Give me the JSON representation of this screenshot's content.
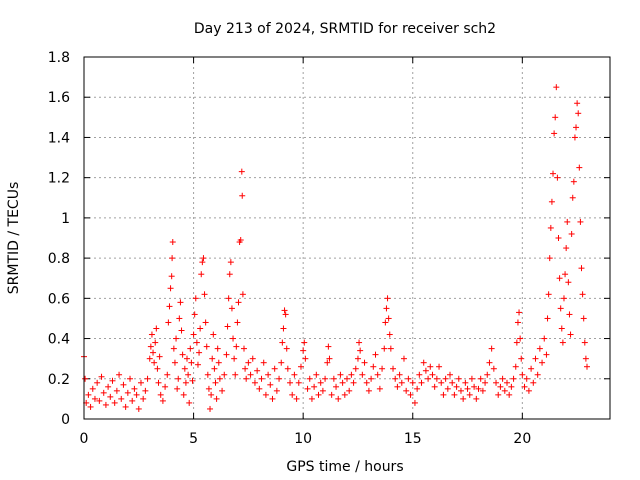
{
  "chart_data": {
    "type": "scatter",
    "title": "Day 213 of 2024, SRMTID for receiver sch2",
    "xlabel": "GPS time / hours",
    "ylabel": "SRMTID / TECUs",
    "xlim": [
      0,
      24
    ],
    "ylim": [
      0,
      1.8
    ],
    "xticks": [
      0,
      5,
      10,
      15,
      20
    ],
    "xtick_labels": [
      "0",
      "5",
      "10",
      "15",
      "20"
    ],
    "yticks": [
      0,
      0.2,
      0.4,
      0.6,
      0.8,
      1.0,
      1.2,
      1.4,
      1.6,
      1.8
    ],
    "ytick_labels": [
      "0",
      "0.2",
      "0.4",
      "0.6",
      "0.8",
      "1",
      "1.2",
      "1.4",
      "1.6",
      "1.8"
    ],
    "grid": true,
    "marker": "+",
    "color": "#ff0000",
    "series": [
      {
        "name": "SRMTID",
        "points": [
          [
            0.0,
            0.31
          ],
          [
            0.05,
            0.2
          ],
          [
            0.1,
            0.08
          ],
          [
            0.2,
            0.12
          ],
          [
            0.3,
            0.06
          ],
          [
            0.4,
            0.15
          ],
          [
            0.5,
            0.1
          ],
          [
            0.6,
            0.18
          ],
          [
            0.7,
            0.09
          ],
          [
            0.8,
            0.21
          ],
          [
            0.9,
            0.13
          ],
          [
            1.0,
            0.07
          ],
          [
            1.1,
            0.16
          ],
          [
            1.2,
            0.11
          ],
          [
            1.3,
            0.19
          ],
          [
            1.4,
            0.08
          ],
          [
            1.5,
            0.14
          ],
          [
            1.6,
            0.22
          ],
          [
            1.7,
            0.1
          ],
          [
            1.8,
            0.17
          ],
          [
            1.9,
            0.06
          ],
          [
            2.0,
            0.13
          ],
          [
            2.1,
            0.2
          ],
          [
            2.2,
            0.09
          ],
          [
            2.3,
            0.15
          ],
          [
            2.4,
            0.12
          ],
          [
            2.5,
            0.05
          ],
          [
            2.6,
            0.18
          ],
          [
            2.7,
            0.1
          ],
          [
            2.8,
            0.14
          ],
          [
            2.9,
            0.2
          ],
          [
            3.0,
            0.3
          ],
          [
            3.05,
            0.36
          ],
          [
            3.1,
            0.42
          ],
          [
            3.15,
            0.33
          ],
          [
            3.2,
            0.28
          ],
          [
            3.25,
            0.38
          ],
          [
            3.3,
            0.45
          ],
          [
            3.35,
            0.25
          ],
          [
            3.4,
            0.18
          ],
          [
            3.45,
            0.31
          ],
          [
            3.5,
            0.12
          ],
          [
            3.6,
            0.09
          ],
          [
            3.7,
            0.16
          ],
          [
            3.8,
            0.22
          ],
          [
            3.85,
            0.48
          ],
          [
            3.9,
            0.56
          ],
          [
            3.95,
            0.65
          ],
          [
            4.0,
            0.71
          ],
          [
            4.02,
            0.8
          ],
          [
            4.05,
            0.88
          ],
          [
            4.1,
            0.35
          ],
          [
            4.15,
            0.28
          ],
          [
            4.2,
            0.4
          ],
          [
            4.25,
            0.15
          ],
          [
            4.3,
            0.2
          ],
          [
            4.35,
            0.5
          ],
          [
            4.4,
            0.58
          ],
          [
            4.45,
            0.44
          ],
          [
            4.5,
            0.32
          ],
          [
            4.55,
            0.12
          ],
          [
            4.6,
            0.25
          ],
          [
            4.65,
            0.18
          ],
          [
            4.7,
            0.3
          ],
          [
            4.75,
            0.22
          ],
          [
            4.8,
            0.08
          ],
          [
            4.85,
            0.35
          ],
          [
            4.9,
            0.28
          ],
          [
            4.95,
            0.19
          ],
          [
            5.0,
            0.42
          ],
          [
            5.05,
            0.52
          ],
          [
            5.1,
            0.6
          ],
          [
            5.15,
            0.38
          ],
          [
            5.2,
            0.27
          ],
          [
            5.25,
            0.33
          ],
          [
            5.3,
            0.45
          ],
          [
            5.35,
            0.72
          ],
          [
            5.4,
            0.78
          ],
          [
            5.45,
            0.8
          ],
          [
            5.5,
            0.62
          ],
          [
            5.55,
            0.48
          ],
          [
            5.6,
            0.36
          ],
          [
            5.65,
            0.22
          ],
          [
            5.7,
            0.15
          ],
          [
            5.75,
            0.05
          ],
          [
            5.8,
            0.12
          ],
          [
            5.85,
            0.3
          ],
          [
            5.9,
            0.42
          ],
          [
            5.95,
            0.25
          ],
          [
            6.0,
            0.18
          ],
          [
            6.05,
            0.1
          ],
          [
            6.1,
            0.35
          ],
          [
            6.15,
            0.28
          ],
          [
            6.2,
            0.2
          ],
          [
            6.3,
            0.14
          ],
          [
            6.4,
            0.22
          ],
          [
            6.5,
            0.32
          ],
          [
            6.55,
            0.46
          ],
          [
            6.6,
            0.6
          ],
          [
            6.65,
            0.72
          ],
          [
            6.7,
            0.78
          ],
          [
            6.75,
            0.55
          ],
          [
            6.8,
            0.4
          ],
          [
            6.85,
            0.3
          ],
          [
            6.9,
            0.22
          ],
          [
            6.95,
            0.36
          ],
          [
            7.0,
            0.48
          ],
          [
            7.05,
            0.58
          ],
          [
            7.1,
            0.88
          ],
          [
            7.15,
            0.89
          ],
          [
            7.2,
            1.23
          ],
          [
            7.22,
            1.11
          ],
          [
            7.25,
            0.62
          ],
          [
            7.3,
            0.35
          ],
          [
            7.35,
            0.25
          ],
          [
            7.4,
            0.2
          ],
          [
            7.5,
            0.28
          ],
          [
            7.6,
            0.22
          ],
          [
            7.7,
            0.3
          ],
          [
            7.8,
            0.18
          ],
          [
            7.9,
            0.24
          ],
          [
            8.0,
            0.15
          ],
          [
            8.1,
            0.2
          ],
          [
            8.2,
            0.28
          ],
          [
            8.3,
            0.12
          ],
          [
            8.4,
            0.22
          ],
          [
            8.5,
            0.17
          ],
          [
            8.6,
            0.1
          ],
          [
            8.7,
            0.25
          ],
          [
            8.8,
            0.14
          ],
          [
            8.9,
            0.2
          ],
          [
            9.0,
            0.28
          ],
          [
            9.05,
            0.38
          ],
          [
            9.1,
            0.45
          ],
          [
            9.15,
            0.54
          ],
          [
            9.2,
            0.52
          ],
          [
            9.25,
            0.35
          ],
          [
            9.3,
            0.25
          ],
          [
            9.4,
            0.18
          ],
          [
            9.5,
            0.12
          ],
          [
            9.6,
            0.22
          ],
          [
            9.7,
            0.1
          ],
          [
            9.8,
            0.18
          ],
          [
            9.9,
            0.26
          ],
          [
            10.0,
            0.34
          ],
          [
            10.05,
            0.38
          ],
          [
            10.1,
            0.3
          ],
          [
            10.2,
            0.15
          ],
          [
            10.3,
            0.2
          ],
          [
            10.4,
            0.1
          ],
          [
            10.5,
            0.16
          ],
          [
            10.6,
            0.22
          ],
          [
            10.7,
            0.12
          ],
          [
            10.8,
            0.18
          ],
          [
            10.9,
            0.14
          ],
          [
            11.0,
            0.2
          ],
          [
            11.1,
            0.28
          ],
          [
            11.15,
            0.36
          ],
          [
            11.2,
            0.3
          ],
          [
            11.3,
            0.12
          ],
          [
            11.4,
            0.2
          ],
          [
            11.5,
            0.16
          ],
          [
            11.6,
            0.1
          ],
          [
            11.7,
            0.22
          ],
          [
            11.8,
            0.18
          ],
          [
            11.9,
            0.12
          ],
          [
            12.0,
            0.2
          ],
          [
            12.1,
            0.14
          ],
          [
            12.2,
            0.22
          ],
          [
            12.3,
            0.18
          ],
          [
            12.4,
            0.25
          ],
          [
            12.5,
            0.3
          ],
          [
            12.55,
            0.38
          ],
          [
            12.6,
            0.34
          ],
          [
            12.7,
            0.22
          ],
          [
            12.8,
            0.28
          ],
          [
            12.9,
            0.18
          ],
          [
            13.0,
            0.14
          ],
          [
            13.1,
            0.2
          ],
          [
            13.2,
            0.26
          ],
          [
            13.3,
            0.32
          ],
          [
            13.4,
            0.22
          ],
          [
            13.5,
            0.15
          ],
          [
            13.6,
            0.25
          ],
          [
            13.7,
            0.35
          ],
          [
            13.75,
            0.48
          ],
          [
            13.8,
            0.55
          ],
          [
            13.85,
            0.6
          ],
          [
            13.9,
            0.5
          ],
          [
            13.95,
            0.42
          ],
          [
            14.0,
            0.35
          ],
          [
            14.1,
            0.25
          ],
          [
            14.2,
            0.2
          ],
          [
            14.3,
            0.16
          ],
          [
            14.4,
            0.22
          ],
          [
            14.5,
            0.18
          ],
          [
            14.6,
            0.3
          ],
          [
            14.7,
            0.14
          ],
          [
            14.8,
            0.2
          ],
          [
            14.9,
            0.12
          ],
          [
            15.0,
            0.18
          ],
          [
            15.1,
            0.08
          ],
          [
            15.2,
            0.15
          ],
          [
            15.3,
            0.22
          ],
          [
            15.4,
            0.18
          ],
          [
            15.5,
            0.28
          ],
          [
            15.6,
            0.24
          ],
          [
            15.7,
            0.2
          ],
          [
            15.8,
            0.26
          ],
          [
            15.9,
            0.22
          ],
          [
            16.0,
            0.16
          ],
          [
            16.1,
            0.2
          ],
          [
            16.2,
            0.26
          ],
          [
            16.3,
            0.18
          ],
          [
            16.4,
            0.12
          ],
          [
            16.5,
            0.2
          ],
          [
            16.6,
            0.15
          ],
          [
            16.7,
            0.22
          ],
          [
            16.8,
            0.18
          ],
          [
            16.9,
            0.12
          ],
          [
            17.0,
            0.16
          ],
          [
            17.1,
            0.2
          ],
          [
            17.2,
            0.14
          ],
          [
            17.3,
            0.1
          ],
          [
            17.4,
            0.18
          ],
          [
            17.5,
            0.15
          ],
          [
            17.6,
            0.12
          ],
          [
            17.7,
            0.2
          ],
          [
            17.8,
            0.16
          ],
          [
            17.9,
            0.1
          ],
          [
            18.0,
            0.15
          ],
          [
            18.1,
            0.2
          ],
          [
            18.2,
            0.14
          ],
          [
            18.3,
            0.18
          ],
          [
            18.4,
            0.22
          ],
          [
            18.5,
            0.28
          ],
          [
            18.6,
            0.35
          ],
          [
            18.7,
            0.25
          ],
          [
            18.8,
            0.18
          ],
          [
            18.9,
            0.12
          ],
          [
            19.0,
            0.16
          ],
          [
            19.1,
            0.2
          ],
          [
            19.2,
            0.14
          ],
          [
            19.3,
            0.18
          ],
          [
            19.4,
            0.12
          ],
          [
            19.5,
            0.16
          ],
          [
            19.6,
            0.2
          ],
          [
            19.7,
            0.26
          ],
          [
            19.75,
            0.38
          ],
          [
            19.8,
            0.48
          ],
          [
            19.85,
            0.53
          ],
          [
            19.9,
            0.4
          ],
          [
            19.95,
            0.3
          ],
          [
            20.0,
            0.22
          ],
          [
            20.1,
            0.16
          ],
          [
            20.2,
            0.2
          ],
          [
            20.3,
            0.14
          ],
          [
            20.4,
            0.25
          ],
          [
            20.5,
            0.18
          ],
          [
            20.6,
            0.3
          ],
          [
            20.7,
            0.22
          ],
          [
            20.8,
            0.35
          ],
          [
            20.9,
            0.28
          ],
          [
            21.0,
            0.4
          ],
          [
            21.1,
            0.32
          ],
          [
            21.15,
            0.5
          ],
          [
            21.2,
            0.62
          ],
          [
            21.25,
            0.8
          ],
          [
            21.3,
            0.95
          ],
          [
            21.35,
            1.08
          ],
          [
            21.4,
            1.22
          ],
          [
            21.45,
            1.42
          ],
          [
            21.5,
            1.5
          ],
          [
            21.55,
            1.65
          ],
          [
            21.6,
            1.2
          ],
          [
            21.65,
            0.9
          ],
          [
            21.7,
            0.7
          ],
          [
            21.75,
            0.55
          ],
          [
            21.8,
            0.45
          ],
          [
            21.85,
            0.38
          ],
          [
            21.9,
            0.6
          ],
          [
            21.95,
            0.72
          ],
          [
            22.0,
            0.85
          ],
          [
            22.05,
            0.98
          ],
          [
            22.1,
            0.68
          ],
          [
            22.15,
            0.52
          ],
          [
            22.2,
            0.42
          ],
          [
            22.25,
            0.92
          ],
          [
            22.3,
            1.1
          ],
          [
            22.35,
            1.18
          ],
          [
            22.4,
            1.4
          ],
          [
            22.45,
            1.45
          ],
          [
            22.5,
            1.57
          ],
          [
            22.55,
            1.52
          ],
          [
            22.6,
            1.25
          ],
          [
            22.65,
            0.98
          ],
          [
            22.7,
            0.75
          ],
          [
            22.75,
            0.62
          ],
          [
            22.8,
            0.5
          ],
          [
            22.85,
            0.38
          ],
          [
            22.9,
            0.3
          ],
          [
            22.95,
            0.26
          ]
        ]
      }
    ]
  }
}
